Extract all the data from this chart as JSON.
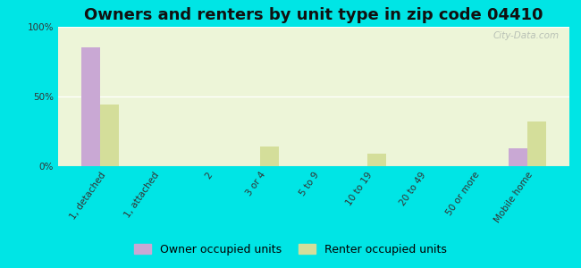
{
  "title": "Owners and renters by unit type in zip code 04410",
  "categories": [
    "1, detached",
    "1, attached",
    "2",
    "3 or 4",
    "5 to 9",
    "10 to 19",
    "20 to 49",
    "50 or more",
    "Mobile home"
  ],
  "owner_values": [
    85,
    0,
    0,
    0,
    0,
    0,
    0,
    0,
    13
  ],
  "renter_values": [
    44,
    0,
    0,
    14,
    0,
    9,
    0,
    0,
    32
  ],
  "owner_color": "#c9a8d4",
  "renter_color": "#d4de9a",
  "background_color": "#00e5e5",
  "plot_bg_color": "#edf5d8",
  "ylim": [
    0,
    100
  ],
  "yticks": [
    0,
    50,
    100
  ],
  "ytick_labels": [
    "0%",
    "50%",
    "100%"
  ],
  "title_fontsize": 13,
  "tick_fontsize": 7.5,
  "legend_fontsize": 9,
  "bar_width": 0.35,
  "watermark": "City-Data.com"
}
